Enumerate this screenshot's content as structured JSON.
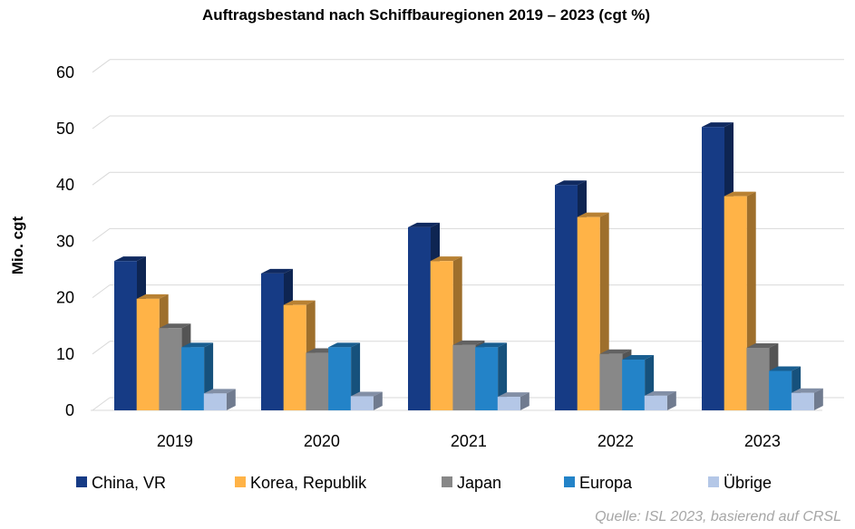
{
  "chart_data": {
    "type": "bar",
    "title": "Auftragsbestand nach Schiffbauregionen 2019 – 2023 (cgt %)",
    "ylabel": "Mio. cgt",
    "xlabel": "",
    "categories": [
      "2019",
      "2020",
      "2021",
      "2022",
      "2023"
    ],
    "ylim": [
      0,
      60
    ],
    "yticks": [
      "0",
      "10",
      "20",
      "30",
      "40",
      "50",
      "60"
    ],
    "grid": true,
    "style": "3d-clustered-column",
    "legend_position": "bottom",
    "series": [
      {
        "name": "China, VR",
        "color": "#163B85",
        "values": [
          26.5,
          24.3,
          32.5,
          40.0,
          50.3
        ]
      },
      {
        "name": "Korea, Republik",
        "color": "#FFB347",
        "values": [
          19.8,
          18.7,
          26.5,
          34.3,
          38.0
        ]
      },
      {
        "name": "Japan",
        "color": "#888888",
        "values": [
          14.6,
          10.2,
          11.6,
          10.0,
          11.1
        ]
      },
      {
        "name": "Europa",
        "color": "#2383C8",
        "values": [
          11.2,
          11.2,
          11.2,
          9.0,
          7.0
        ]
      },
      {
        "name": "Übrige",
        "color": "#B4C7E7",
        "values": [
          3.0,
          2.5,
          2.4,
          2.6,
          3.1
        ]
      }
    ],
    "source_note": "Quelle: ISL 2023, basierend auf CRSL"
  }
}
